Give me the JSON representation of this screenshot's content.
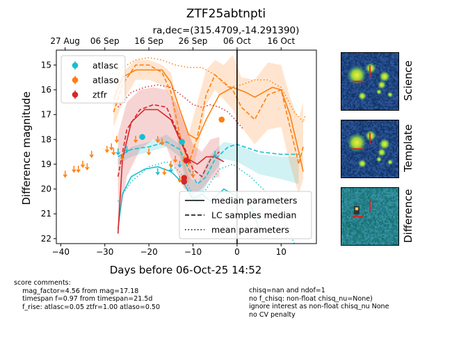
{
  "chart_data": {
    "type": "scatter",
    "title": "ZTF25abtnpti",
    "subtitle": "ra,dec=(315.4709,-14.291390)",
    "xlabel": "Days before 06-Oct-25 14:52",
    "ylabel": "Difference magnitude",
    "xlim": [
      -41,
      18
    ],
    "ylim": [
      22.2,
      14.4
    ],
    "x_ticks": [
      -40,
      -30,
      -20,
      -10,
      0,
      10
    ],
    "y_ticks": [
      15,
      16,
      17,
      18,
      19,
      20,
      21,
      22
    ],
    "top_axis_ticks": [
      {
        "x": -39.0,
        "label": "27 Aug"
      },
      {
        "x": -30.0,
        "label": "06 Sep"
      },
      {
        "x": -20.0,
        "label": "16 Sep"
      },
      {
        "x": -10.0,
        "label": "26 Sep"
      },
      {
        "x": 0.0,
        "label": "06 Oct"
      },
      {
        "x": 10.0,
        "label": "16 Oct"
      }
    ],
    "vline_x": 0,
    "legend_top_left": [
      {
        "label": "atlasc",
        "color": "#17becf"
      },
      {
        "label": "atlaso",
        "color": "#ff7f0e"
      },
      {
        "label": "ztfr",
        "color": "#d62728"
      }
    ],
    "legend_bottom_right": [
      {
        "label": "median parameters",
        "dash": "solid"
      },
      {
        "label": "LC samples median",
        "dash": "dashed"
      },
      {
        "label": "mean parameters",
        "dash": "dotted"
      }
    ],
    "series": [
      {
        "name": "atlasc",
        "color": "#17becf",
        "points": [
          [
            -21.5,
            17.9,
            0.12
          ],
          [
            -12.5,
            18.1,
            0.12
          ]
        ],
        "upper_limits": [
          [
            -27,
            18.5
          ],
          [
            -25,
            18.4
          ],
          [
            -18,
            19.3
          ],
          [
            -15,
            19.2
          ],
          [
            -13,
            19.0
          ],
          [
            -5,
            18.6
          ]
        ],
        "band_upper": [
          [
            -27,
            18.8
          ],
          [
            -24,
            18.3
          ],
          [
            -20,
            18.1
          ],
          [
            -16,
            17.8
          ],
          [
            -13,
            18.2
          ],
          [
            -11,
            19.5
          ],
          [
            -9,
            19.8
          ],
          [
            -6,
            18.6
          ],
          [
            -3,
            18.1
          ],
          [
            0,
            18.2
          ],
          [
            5,
            18.6
          ],
          [
            10,
            18.7
          ],
          [
            14,
            18.7
          ]
        ],
        "band_lower": [
          [
            -27,
            19.0
          ],
          [
            -24,
            18.7
          ],
          [
            -20,
            18.5
          ],
          [
            -16,
            18.3
          ],
          [
            -13,
            18.7
          ],
          [
            -11,
            20.3
          ],
          [
            -9,
            20.6
          ],
          [
            -6,
            19.5
          ],
          [
            -3,
            18.8
          ],
          [
            0,
            18.9
          ],
          [
            5,
            19.4
          ],
          [
            10,
            19.6
          ],
          [
            14,
            19.8
          ]
        ],
        "median_curve": [
          [
            -27,
            21.6
          ],
          [
            -26,
            20.2
          ],
          [
            -24,
            19.5
          ],
          [
            -21,
            19.2
          ],
          [
            -18,
            19.1
          ],
          [
            -15,
            19.3
          ],
          [
            -12,
            19.8
          ],
          [
            -10,
            20.4
          ],
          [
            -8,
            20.2
          ],
          [
            -6,
            20.5
          ],
          [
            -3,
            20.0
          ],
          [
            0,
            20.3
          ],
          [
            3,
            20.6
          ],
          [
            5,
            21.6
          ]
        ],
        "lc_median_curve": [
          [
            -27,
            18.7
          ],
          [
            -24,
            18.4
          ],
          [
            -20,
            18.3
          ],
          [
            -16,
            18.1
          ],
          [
            -13,
            18.4
          ],
          [
            -11,
            19.2
          ],
          [
            -9,
            19.8
          ],
          [
            -7,
            19.5
          ],
          [
            -5,
            18.8
          ],
          [
            -2,
            18.3
          ],
          [
            0,
            18.2
          ],
          [
            5,
            18.5
          ],
          [
            10,
            18.6
          ],
          [
            14,
            18.6
          ]
        ],
        "mean_curve": [
          [
            -27,
            20.5
          ],
          [
            -24,
            19.7
          ],
          [
            -20,
            19.1
          ],
          [
            -16,
            18.9
          ],
          [
            -13,
            19.3
          ],
          [
            -11,
            19.9
          ],
          [
            -9,
            20.6
          ],
          [
            -7,
            20.0
          ],
          [
            -4,
            19.2
          ],
          [
            -1,
            19.0
          ],
          [
            3,
            19.5
          ],
          [
            7,
            20.2
          ],
          [
            10,
            21.0
          ],
          [
            13,
            22.2
          ]
        ]
      },
      {
        "name": "atlaso",
        "color": "#ff7f0e",
        "points": [
          [
            -3.5,
            17.2,
            0.1
          ]
        ],
        "upper_limits": [
          [
            -39,
            19.4
          ],
          [
            -37,
            19.2
          ],
          [
            -36,
            19.2
          ],
          [
            -35,
            19.0
          ],
          [
            -34,
            19.1
          ],
          [
            -33,
            18.6
          ],
          [
            -29.5,
            18.4
          ],
          [
            -28.5,
            18.3
          ],
          [
            -28,
            18.5
          ],
          [
            -27.3,
            18.0
          ],
          [
            -26,
            18.7
          ],
          [
            -23,
            18.0
          ],
          [
            -20,
            18.5
          ],
          [
            -18,
            18.0
          ],
          [
            -17,
            18.1
          ],
          [
            -16.5,
            19.3
          ],
          [
            -15,
            19.0
          ],
          [
            -14,
            18.8
          ],
          [
            -13,
            19.6
          ],
          [
            -12,
            18.8
          ],
          [
            -10,
            19.4
          ]
        ],
        "band_upper": [
          [
            -28,
            16.0
          ],
          [
            -26,
            15.3
          ],
          [
            -23,
            14.8
          ],
          [
            -20,
            14.8
          ],
          [
            -17,
            15.0
          ],
          [
            -15,
            15.3
          ],
          [
            -13,
            17.0
          ],
          [
            -11,
            17.8
          ],
          [
            -9,
            16.5
          ],
          [
            -7,
            15.2
          ],
          [
            -5,
            14.8
          ],
          [
            -3,
            15.0
          ],
          [
            -1,
            14.6
          ],
          [
            1,
            15.5
          ],
          [
            4,
            15.6
          ],
          [
            7,
            14.9
          ],
          [
            10,
            15.0
          ],
          [
            12,
            16.3
          ],
          [
            14,
            17.2
          ],
          [
            15,
            16.5
          ]
        ],
        "band_lower": [
          [
            -28,
            17.5
          ],
          [
            -26,
            16.5
          ],
          [
            -23,
            15.6
          ],
          [
            -20,
            15.6
          ],
          [
            -17,
            15.8
          ],
          [
            -15,
            16.3
          ],
          [
            -13,
            18.6
          ],
          [
            -11,
            19.8
          ],
          [
            -9,
            18.5
          ],
          [
            -7,
            16.6
          ],
          [
            -5,
            16.0
          ],
          [
            -3,
            16.4
          ],
          [
            -1,
            16.8
          ],
          [
            1,
            17.5
          ],
          [
            4,
            18.2
          ],
          [
            7,
            17.6
          ],
          [
            10,
            17.5
          ],
          [
            12,
            19.0
          ],
          [
            14,
            20.2
          ],
          [
            15,
            19.6
          ]
        ],
        "median_curve": [
          [
            -28,
            16.4
          ],
          [
            -26,
            15.5
          ],
          [
            -23,
            15.2
          ],
          [
            -20,
            15.2
          ],
          [
            -17,
            15.2
          ],
          [
            -15,
            15.7
          ],
          [
            -13,
            16.8
          ],
          [
            -11,
            17.8
          ],
          [
            -9,
            18.0
          ],
          [
            -7,
            17.2
          ],
          [
            -4,
            16.2
          ],
          [
            -1,
            15.9
          ],
          [
            2,
            16.1
          ],
          [
            4,
            16.3
          ],
          [
            6,
            16.1
          ],
          [
            8,
            15.9
          ],
          [
            10,
            16.0
          ],
          [
            12,
            17.0
          ],
          [
            14,
            18.5
          ],
          [
            15,
            19.3
          ]
        ],
        "lc_median_curve": [
          [
            -28,
            16.9
          ],
          [
            -26,
            15.8
          ],
          [
            -23,
            15.0
          ],
          [
            -20,
            15.0
          ],
          [
            -17,
            15.3
          ],
          [
            -15,
            16.1
          ],
          [
            -13,
            17.8
          ],
          [
            -11,
            19.0
          ],
          [
            -9,
            17.9
          ],
          [
            -7,
            16.2
          ],
          [
            -5,
            15.4
          ],
          [
            -3,
            15.7
          ],
          [
            -1,
            16.0
          ],
          [
            1,
            16.7
          ],
          [
            4,
            17.2
          ],
          [
            7,
            16.2
          ],
          [
            10,
            16.0
          ],
          [
            12,
            17.5
          ],
          [
            14,
            19.0
          ],
          [
            15,
            18.3
          ]
        ],
        "mean_curve": [
          [
            -28,
            15.8
          ],
          [
            -26,
            15.1
          ],
          [
            -23,
            14.8
          ],
          [
            -20,
            14.7
          ],
          [
            -17,
            14.8
          ],
          [
            -14,
            15.0
          ],
          [
            -11,
            15.1
          ],
          [
            -8,
            15.1
          ],
          [
            -5,
            15.4
          ],
          [
            -2,
            15.9
          ],
          [
            1,
            15.8
          ],
          [
            4,
            15.6
          ],
          [
            7,
            15.6
          ],
          [
            10,
            15.9
          ],
          [
            13,
            16.9
          ],
          [
            15,
            17.3
          ],
          [
            15.5,
            17.0
          ]
        ]
      },
      {
        "name": "ztfr",
        "color": "#d62728",
        "points": [
          [
            -11.5,
            18.85,
            0.1
          ],
          [
            -12.0,
            19.55,
            0.08
          ],
          [
            -12.0,
            19.7,
            0.08
          ]
        ],
        "upper_limits": [],
        "band_upper": [
          [
            -27,
            17.8
          ],
          [
            -25,
            16.5
          ],
          [
            -22,
            16.0
          ],
          [
            -19,
            15.9
          ],
          [
            -16,
            16.0
          ],
          [
            -14,
            16.5
          ],
          [
            -12,
            17.3
          ],
          [
            -10,
            18.2
          ],
          [
            -8,
            18.5
          ],
          [
            -6,
            18.0
          ],
          [
            -4,
            17.9
          ]
        ],
        "band_lower": [
          [
            -27,
            21.5
          ],
          [
            -25,
            19.5
          ],
          [
            -22,
            18.4
          ],
          [
            -19,
            18.0
          ],
          [
            -16,
            18.3
          ],
          [
            -14,
            19.2
          ],
          [
            -12,
            20.0
          ],
          [
            -10,
            20.2
          ],
          [
            -8,
            20.0
          ],
          [
            -6,
            19.6
          ],
          [
            -4,
            19.5
          ]
        ],
        "median_curve": [
          [
            -27,
            21.8
          ],
          [
            -26,
            18.8
          ],
          [
            -24,
            17.3
          ],
          [
            -21,
            16.8
          ],
          [
            -18,
            16.8
          ],
          [
            -15,
            17.2
          ],
          [
            -13,
            18.0
          ],
          [
            -11,
            18.8
          ],
          [
            -9,
            19.0
          ],
          [
            -7,
            18.7
          ],
          [
            -5,
            18.7
          ],
          [
            -3,
            18.9
          ]
        ],
        "lc_median_curve": [
          [
            -27,
            19.5
          ],
          [
            -25,
            17.6
          ],
          [
            -22,
            16.8
          ],
          [
            -19,
            16.6
          ],
          [
            -16,
            16.7
          ],
          [
            -14,
            17.5
          ],
          [
            -12,
            18.3
          ],
          [
            -10,
            19.2
          ],
          [
            -8,
            19.5
          ],
          [
            -6,
            18.8
          ],
          [
            -4,
            18.5
          ]
        ],
        "mean_curve": [
          [
            -27,
            16.7
          ],
          [
            -24,
            16.1
          ],
          [
            -21,
            15.9
          ],
          [
            -18,
            15.8
          ],
          [
            -15,
            15.9
          ],
          [
            -12,
            16.3
          ],
          [
            -10,
            16.6
          ],
          [
            -8,
            16.7
          ],
          [
            -6,
            16.6
          ],
          [
            -4,
            16.7
          ],
          [
            -2,
            16.9
          ],
          [
            0,
            17.3
          ],
          [
            1.5,
            17.6
          ]
        ]
      }
    ],
    "colors": {
      "vline": "#000000",
      "accent": "#17becf",
      "orange": "#ff7f0e",
      "red": "#d62728"
    }
  },
  "stamps": [
    {
      "label": "Science"
    },
    {
      "label": "Template"
    },
    {
      "label": "Difference"
    }
  ],
  "comments_left": "score comments:\n    mag_factor=4.56 from mag=17.18\n    timespan f=0.97 from timespan=21.5d\n    f_rise: atlasc=0.05 ztfr=1.00 atlaso=0.50",
  "comments_right": "chisq=nan and ndof=1\nno f_chisq: non-float chisq_nu=None)\nignore interest as non-float chisq_nu None\nno CV penalty"
}
